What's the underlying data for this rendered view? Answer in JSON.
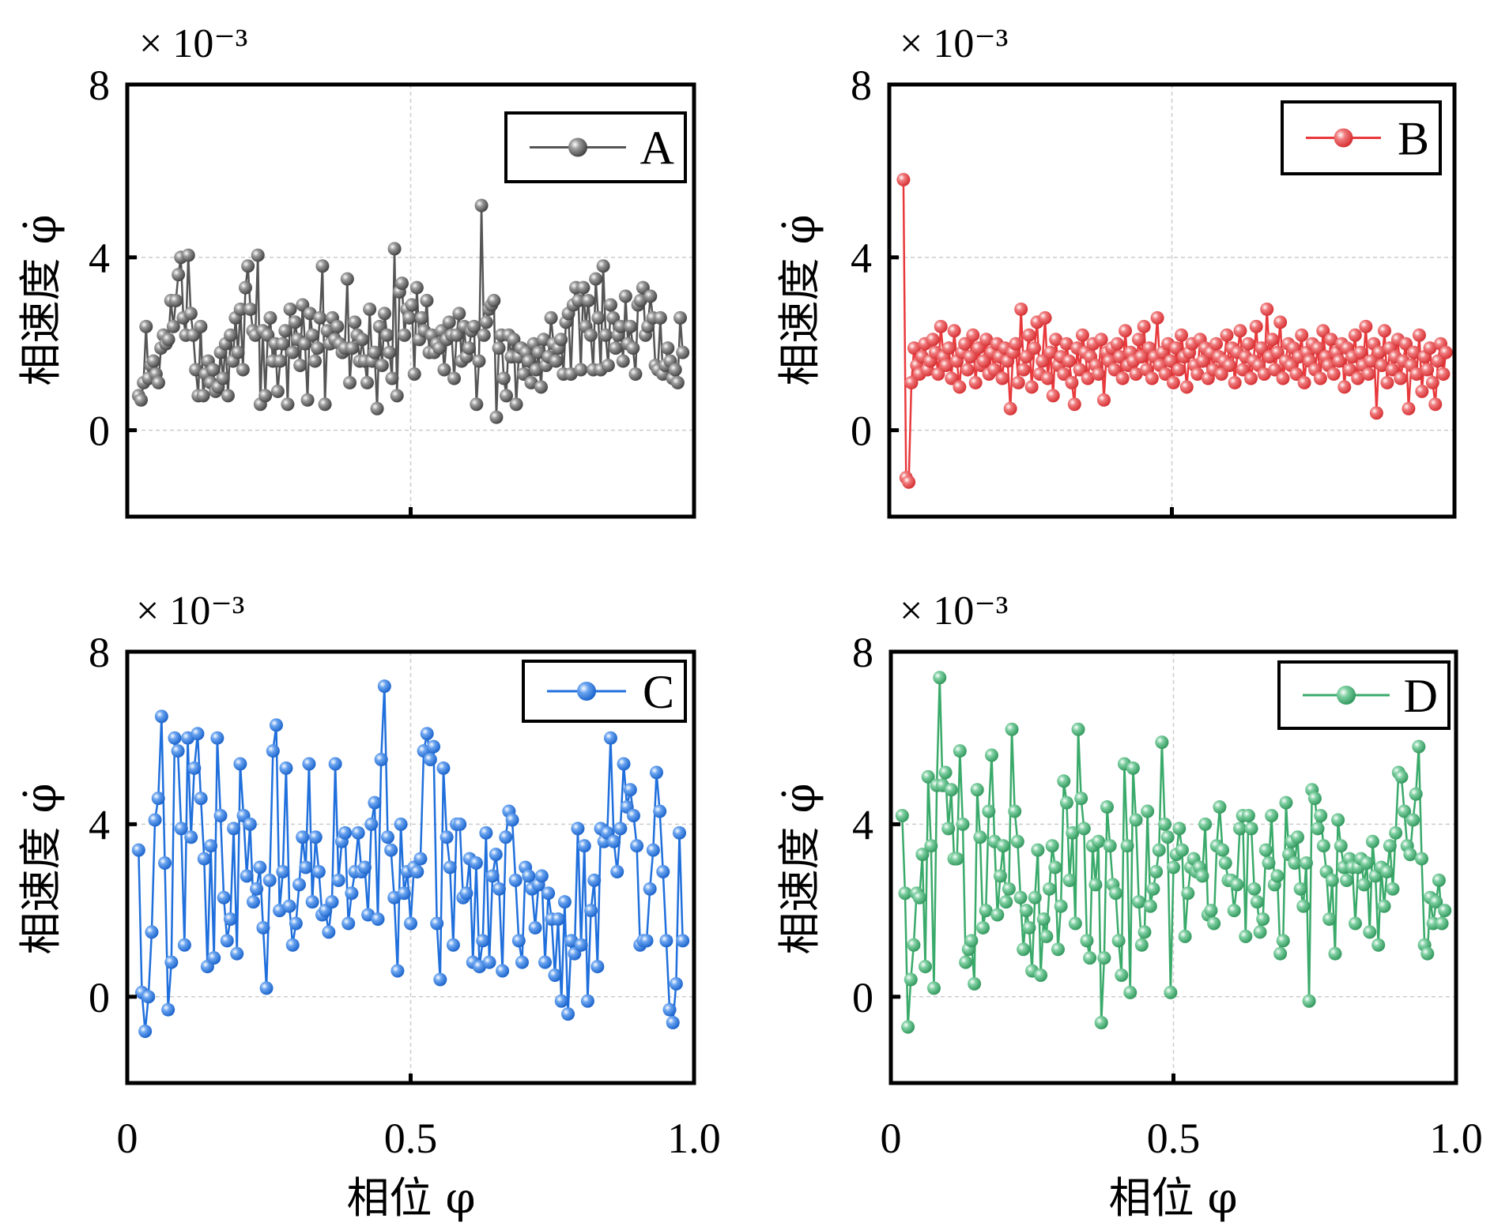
{
  "chart_data": [
    {
      "id": "A",
      "type": "line",
      "title": "",
      "xlabel": "相位 φ",
      "ylabel": "相速度 φ̇",
      "y_multiplier": "× 10⁻³",
      "xlim": [
        0,
        1.0
      ],
      "ylim": [
        -2,
        8
      ],
      "xticks": [
        0,
        0.5,
        1.0
      ],
      "xtick_labels": [
        "",
        "",
        ""
      ],
      "yticks": [
        0,
        4,
        8
      ],
      "ytick_labels": [
        "0",
        "4",
        "8"
      ],
      "grid": true,
      "legend": {
        "label": "A",
        "position": "top-right"
      },
      "color": "#555555",
      "series": [
        {
          "name": "A",
          "x_range": [
            0.02,
            0.98
          ],
          "values": [
            0.8,
            0.7,
            1.1,
            2.4,
            1.2,
            1.5,
            1.6,
            1.3,
            1.1,
            1.9,
            2.2,
            2.0,
            2.1,
            3.0,
            2.4,
            3.0,
            3.6,
            4.0,
            2.6,
            2.2,
            4.05,
            2.7,
            2.2,
            1.4,
            0.8,
            2.4,
            0.8,
            1.3,
            1.6,
            1.1,
            1.4,
            0.9,
            1.0,
            1.8,
            1.2,
            2.0,
            0.8,
            2.2,
            1.6,
            2.6,
            1.8,
            2.8,
            1.4,
            3.3,
            3.8,
            2.8,
            2.3,
            2.2,
            4.05,
            0.6,
            2.3,
            0.8,
            2.2,
            2.6,
            1.6,
            2.0,
            0.9,
            1.6,
            2.0,
            2.3,
            0.6,
            2.8,
            1.8,
            2.5,
            2.1,
            1.5,
            2.9,
            2.0,
            0.7,
            2.7,
            2.2,
            1.6,
            1.9,
            2.6,
            3.8,
            0.6,
            2.3,
            2.0,
            2.6,
            2.1,
            2.4,
            2.0,
            1.8,
            1.9,
            3.5,
            1.1,
            1.9,
            2.5,
            2.2,
            1.6,
            2.1,
            1.6,
            1.1,
            2.8,
            1.6,
            1.8,
            0.5,
            2.4,
            1.5,
            2.7,
            2.2,
            1.8,
            1.2,
            4.2,
            0.8,
            3.2,
            3.4,
            2.2,
            2.8,
            2.6,
            2.9,
            1.3,
            3.3,
            2.1,
            2.6,
            2.3,
            3.0,
            1.8,
            2.2,
            1.8,
            2.0,
            1.9,
            2.3,
            1.4,
            2.1,
            2.5,
            2.2,
            1.2,
            2.2,
            2.7,
            1.6,
            2.4,
            1.7,
            1.9,
            2.3,
            2.4,
            0.6,
            1.6,
            5.2,
            2.2,
            2.5,
            2.8,
            2.9,
            3.0,
            0.3,
            1.9,
            2.2,
            1.2,
            0.8,
            2.2,
            1.7,
            2.1,
            0.6,
            1.7,
            1.9,
            1.3,
            1.8,
            1.6,
            1.1,
            2.0,
            1.4,
            1.8,
            1.0,
            2.1,
            1.5,
            1.7,
            2.6,
            2.0,
            1.6,
            1.9,
            2.1,
            1.3,
            2.5,
            2.7,
            1.3,
            2.9,
            3.3,
            3.0,
            1.4,
            3.3,
            2.4,
            3.0,
            2.2,
            1.4,
            3.5,
            2.6,
            1.4,
            3.8,
            2.2,
            1.5,
            2.9,
            2.6,
            1.9,
            2.2,
            2.4,
            1.6,
            3.1,
            2.0,
            2.4,
            1.9,
            1.3,
            2.9,
            3.0,
            3.3,
            2.2,
            2.4,
            3.1,
            2.6,
            1.5,
            1.4,
            2.6,
            1.3,
            1.5,
            1.9,
            1.6,
            1.2,
            1.4,
            1.1,
            2.6,
            1.8
          ]
        }
      ]
    },
    {
      "id": "B",
      "type": "line",
      "title": "",
      "xlabel": "相位 φ",
      "ylabel": "相速度 φ̇",
      "y_multiplier": "× 10⁻³",
      "xlim": [
        0,
        1.0
      ],
      "ylim": [
        -2,
        8
      ],
      "xticks": [
        0,
        0.5,
        1.0
      ],
      "xtick_labels": [
        "",
        "",
        ""
      ],
      "yticks": [
        0,
        4,
        8
      ],
      "ytick_labels": [
        "0",
        "4",
        "8"
      ],
      "grid": true,
      "legend": {
        "label": "B",
        "position": "top-right"
      },
      "color": "#e8393c",
      "series": [
        {
          "name": "B",
          "x_range": [
            0.025,
            0.985
          ],
          "values": [
            5.8,
            -1.1,
            -1.2,
            1.1,
            1.9,
            1.5,
            1.3,
            1.7,
            2.0,
            1.4,
            1.6,
            2.1,
            1.8,
            1.3,
            2.4,
            1.7,
            1.5,
            1.9,
            1.2,
            2.3,
            1.6,
            1.0,
            1.8,
            2.0,
            1.4,
            1.7,
            2.2,
            1.1,
            1.9,
            1.5,
            1.6,
            2.1,
            1.3,
            1.8,
            1.4,
            2.0,
            1.7,
            1.2,
            1.9,
            1.6,
            0.5,
            1.8,
            2.0,
            1.1,
            2.8,
            1.4,
            1.7,
            2.2,
            1.0,
            1.9,
            2.5,
            1.3,
            1.6,
            2.6,
            1.2,
            1.8,
            0.8,
            2.1,
            1.5,
            1.7,
            1.3,
            2.0,
            1.6,
            1.1,
            0.6,
            1.9,
            1.4,
            2.2,
            1.8,
            1.2,
            1.7,
            2.0,
            1.5,
            1.3,
            2.1,
            0.7,
            1.8,
            1.6,
            1.9,
            1.4,
            2.0,
            1.7,
            1.2,
            2.3,
            1.5,
            1.8,
            1.6,
            1.3,
            2.1,
            1.7,
            2.4,
            1.4,
            1.9,
            1.2,
            1.7,
            2.6,
            1.5,
            1.8,
            1.3,
            2.0,
            1.6,
            1.1,
            1.9,
            1.4,
            2.2,
            1.7,
            1.0,
            1.8,
            2.0,
            1.5,
            1.3,
            2.1,
            1.6,
            1.9,
            1.2,
            1.8,
            1.4,
            2.0,
            1.7,
            1.3,
            1.6,
            2.2,
            1.5,
            1.9,
            1.1,
            1.8,
            2.3,
            1.4,
            1.7,
            2.0,
            1.2,
            1.6,
            2.4,
            1.5,
            1.9,
            1.3,
            2.8,
            1.7,
            2.1,
            1.4,
            1.8,
            2.5,
            1.2,
            1.6,
            2.0,
            1.5,
            1.9,
            1.3,
            1.7,
            2.2,
            1.1,
            1.8,
            1.6,
            2.0,
            1.4,
            1.9,
            1.2,
            2.3,
            1.7,
            1.5,
            2.1,
            1.3,
            1.8,
            1.6,
            2.0,
            1.0,
            1.9,
            1.4,
            1.7,
            2.2,
            1.2,
            1.8,
            1.5,
            2.4,
            1.3,
            1.6,
            2.0,
            0.4,
            1.8,
            1.5,
            2.3,
            1.1,
            1.9,
            1.4,
            1.7,
            2.1,
            1.2,
            1.6,
            2.0,
            0.5,
            1.5,
            1.8,
            1.3,
            2.2,
            0.9,
            1.7,
            1.4,
            1.9,
            1.1,
            0.6,
            1.6,
            2.0,
            1.3,
            1.8
          ]
        }
      ]
    },
    {
      "id": "C",
      "type": "line",
      "title": "",
      "xlabel": "相位 φ",
      "ylabel": "相速度 φ̇",
      "y_multiplier": "× 10⁻³",
      "xlim": [
        0,
        1.0
      ],
      "ylim": [
        -2,
        8
      ],
      "xticks": [
        0,
        0.5,
        1.0
      ],
      "xtick_labels": [
        "0",
        "0.5",
        "1.0"
      ],
      "yticks": [
        0,
        4,
        8
      ],
      "ytick_labels": [
        "0",
        "4",
        "8"
      ],
      "grid": true,
      "legend": {
        "label": "C",
        "position": "top-right"
      },
      "color": "#1f6fdc",
      "series": [
        {
          "name": "C",
          "x_range": [
            0.02,
            0.98
          ],
          "values": [
            3.4,
            0.1,
            -0.8,
            0.0,
            1.5,
            4.1,
            4.6,
            6.5,
            3.1,
            -0.3,
            0.8,
            6.0,
            5.7,
            3.9,
            1.2,
            6.0,
            3.7,
            5.3,
            6.1,
            4.6,
            3.2,
            0.7,
            3.5,
            0.9,
            6.0,
            4.2,
            2.3,
            1.3,
            1.8,
            3.9,
            1.0,
            5.4,
            4.2,
            2.8,
            4.0,
            2.2,
            2.5,
            3.0,
            1.6,
            0.2,
            2.7,
            5.7,
            6.3,
            2.0,
            2.9,
            5.3,
            2.1,
            1.2,
            1.7,
            2.6,
            3.7,
            3.0,
            5.4,
            2.2,
            3.7,
            2.9,
            1.9,
            2.0,
            1.5,
            2.2,
            5.4,
            2.7,
            3.6,
            3.8,
            1.7,
            2.4,
            2.9,
            3.8,
            2.9,
            3.0,
            1.9,
            4.0,
            4.5,
            1.8,
            5.5,
            7.2,
            3.7,
            3.4,
            2.3,
            0.6,
            4.0,
            2.4,
            2.9,
            1.7,
            3.0,
            2.9,
            3.2,
            5.7,
            6.1,
            5.5,
            5.8,
            1.7,
            0.4,
            5.3,
            3.7,
            3.0,
            1.2,
            4.0,
            4.0,
            2.3,
            2.4,
            3.2,
            0.8,
            3.1,
            0.7,
            1.3,
            3.8,
            0.8,
            2.8,
            3.3,
            2.5,
            0.6,
            3.7,
            4.3,
            4.1,
            2.7,
            1.3,
            0.8,
            3.0,
            2.8,
            2.5,
            1.6,
            2.6,
            2.8,
            0.8,
            2.4,
            1.8,
            0.5,
            1.8,
            -0.1,
            2.2,
            -0.4,
            1.3,
            1.0,
            3.9,
            1.2,
            3.5,
            -0.1,
            2.0,
            2.7,
            0.7,
            3.9,
            3.6,
            3.8,
            6.0,
            3.6,
            2.9,
            3.9,
            5.4,
            4.4,
            4.8,
            4.2,
            3.5,
            1.2,
            1.3,
            1.3,
            2.5,
            3.4,
            5.2,
            4.3,
            2.9,
            1.3,
            -0.3,
            -0.6,
            0.3,
            3.8,
            1.3
          ]
        }
      ]
    },
    {
      "id": "D",
      "type": "line",
      "title": "",
      "xlabel": "相位 φ",
      "ylabel": "相速度 φ̇",
      "y_multiplier": "× 10⁻³",
      "xlim": [
        0,
        1.0
      ],
      "ylim": [
        -2,
        8
      ],
      "xticks": [
        0,
        0.5,
        1.0
      ],
      "xtick_labels": [
        "0",
        "0.5",
        "1.0"
      ],
      "yticks": [
        0,
        4,
        8
      ],
      "ytick_labels": [
        "0",
        "4",
        "8"
      ],
      "grid": true,
      "legend": {
        "label": "D",
        "position": "top-right"
      },
      "color": "#3aaa6a",
      "series": [
        {
          "name": "D",
          "x_range": [
            0.02,
            0.98
          ],
          "values": [
            4.2,
            2.4,
            -0.7,
            0.4,
            1.2,
            2.4,
            2.3,
            3.3,
            0.7,
            5.1,
            3.5,
            0.2,
            4.9,
            7.4,
            4.9,
            5.2,
            3.9,
            4.8,
            3.2,
            3.2,
            5.7,
            4.0,
            0.8,
            1.1,
            1.3,
            0.3,
            4.8,
            3.7,
            1.6,
            2.0,
            4.3,
            5.6,
            3.6,
            1.9,
            2.8,
            3.5,
            2.2,
            2.5,
            6.2,
            4.3,
            3.6,
            2.3,
            1.1,
            2.0,
            1.6,
            0.6,
            2.3,
            3.4,
            0.5,
            1.8,
            1.4,
            2.5,
            3.5,
            3.0,
            1.1,
            2.1,
            5.0,
            4.5,
            2.7,
            3.8,
            1.7,
            6.2,
            4.6,
            3.9,
            1.3,
            0.9,
            3.5,
            2.6,
            3.6,
            -0.6,
            0.9,
            4.4,
            3.5,
            2.6,
            2.4,
            1.3,
            0.5,
            5.4,
            3.5,
            0.1,
            5.3,
            4.1,
            2.2,
            1.2,
            1.5,
            4.3,
            2.1,
            2.5,
            2.9,
            3.4,
            5.9,
            4.0,
            3.7,
            0.1,
            3.0,
            3.3,
            3.9,
            3.4,
            1.4,
            2.4,
            3.0,
            3.2,
            2.9,
            3.0,
            2.8,
            4.0,
            1.9,
            2.0,
            1.7,
            3.5,
            4.4,
            3.4,
            3.1,
            2.7,
            2.7,
            2.0,
            2.6,
            3.9,
            4.2,
            1.4,
            4.2,
            3.9,
            2.5,
            2.2,
            1.5,
            1.8,
            3.4,
            3.1,
            4.2,
            2.6,
            2.8,
            1.0,
            1.3,
            4.5,
            3.3,
            3.6,
            3.1,
            3.7,
            2.5,
            2.1,
            3.1,
            -0.1,
            4.8,
            4.6,
            3.9,
            4.2,
            3.5,
            2.9,
            1.8,
            2.7,
            1.0,
            4.1,
            3.5,
            3.0,
            2.7,
            3.2,
            3.0,
            1.7,
            3.0,
            3.2,
            2.6,
            3.1,
            1.5,
            3.6,
            2.8,
            1.2,
            3.0,
            2.1,
            2.9,
            3.5,
            2.5,
            3.8,
            5.2,
            5.1,
            4.3,
            3.5,
            3.3,
            4.1,
            4.7,
            5.8,
            3.2,
            1.2,
            1.0,
            2.3,
            1.7,
            2.2,
            2.7,
            1.7,
            2.0
          ]
        }
      ]
    }
  ]
}
